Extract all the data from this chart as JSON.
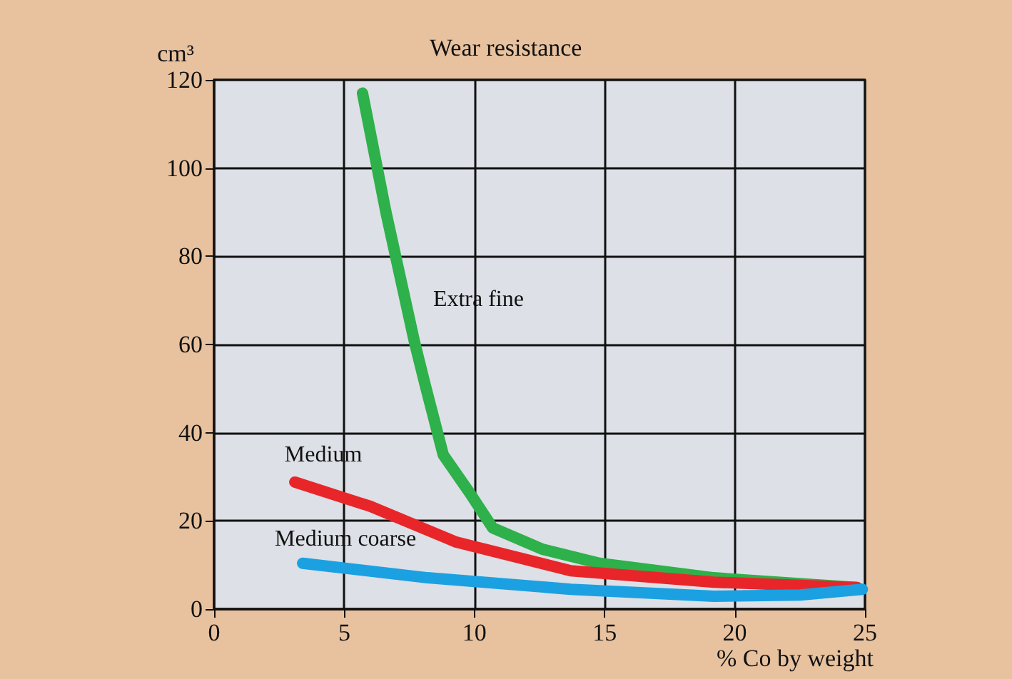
{
  "chart_data": {
    "type": "line",
    "title": "Wear resistance",
    "xlabel": "% Co by weight",
    "ylabel": "cm³",
    "xlim": [
      0,
      25
    ],
    "xticks": [
      0,
      5,
      10,
      15,
      20,
      25
    ],
    "ylim": [
      0,
      120
    ],
    "yticks": [
      0,
      20,
      40,
      60,
      80,
      100,
      120
    ],
    "grid": true,
    "legend": false,
    "marker": "none",
    "line_style": "solid",
    "series": [
      {
        "name": "Extra fine",
        "color": "#2eb04b",
        "x": [
          5.7,
          6.6,
          7.7,
          8.1,
          8.8,
          9.8,
          10.7,
          12.6,
          14.8,
          19.2,
          24.7
        ],
        "values": [
          117,
          90,
          60.5,
          51,
          35,
          26.5,
          18.4,
          13.6,
          10.4,
          7.1,
          4.9
        ]
      },
      {
        "name": "Medium",
        "color": "#e8262a",
        "x": [
          3.1,
          6,
          9.3,
          13.7,
          19.2,
          24.7
        ],
        "values": [
          28.8,
          23.3,
          15.2,
          8.7,
          6.1,
          4.9
        ]
      },
      {
        "name": "Medium coarse",
        "color": "#1ba1e2",
        "x": [
          3.4,
          8.2,
          13.7,
          19.2,
          22.5,
          24.9
        ],
        "values": [
          10.4,
          7.1,
          4.5,
          2.9,
          3.2,
          4.5
        ]
      }
    ]
  }
}
